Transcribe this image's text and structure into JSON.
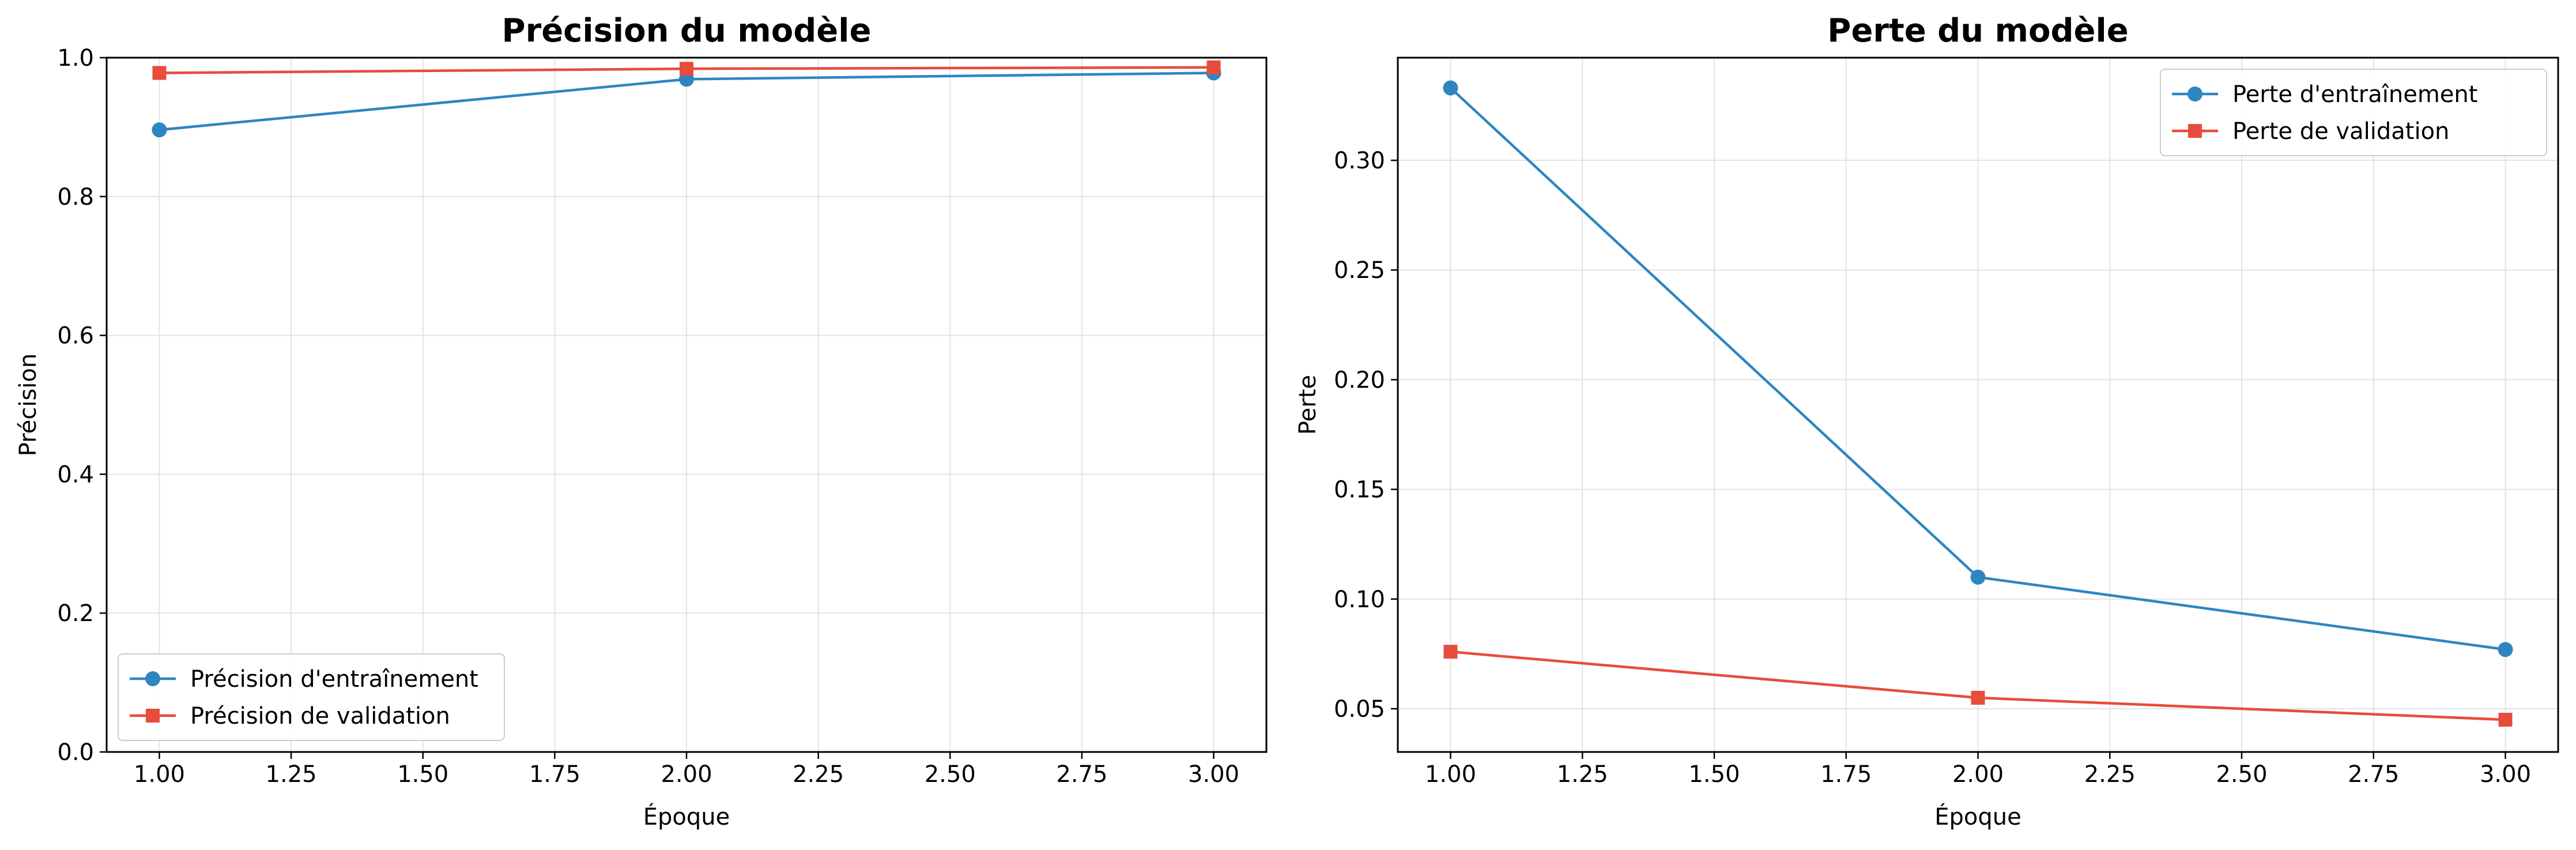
{
  "chart_data": [
    {
      "type": "line",
      "title": "Précision du modèle",
      "xlabel": "Époque",
      "ylabel": "Précision",
      "xlim": [
        0.9,
        3.1
      ],
      "ylim": [
        0.0,
        1.0
      ],
      "xticks": [
        "1.00",
        "1.25",
        "1.50",
        "1.75",
        "2.00",
        "2.25",
        "2.50",
        "2.75",
        "3.00"
      ],
      "yticks": [
        "0.0",
        "0.2",
        "0.4",
        "0.6",
        "0.8",
        "1.0"
      ],
      "grid": true,
      "legend_position": "lower-left",
      "x": [
        1,
        2,
        3
      ],
      "series": [
        {
          "name": "Précision d'entraînement",
          "values": [
            0.896,
            0.969,
            0.978
          ],
          "color": "#2e86c1",
          "marker": "circle"
        },
        {
          "name": "Précision de validation",
          "values": [
            0.978,
            0.984,
            0.986
          ],
          "color": "#e74c3c",
          "marker": "square"
        }
      ]
    },
    {
      "type": "line",
      "title": "Perte du modèle",
      "xlabel": "Époque",
      "ylabel": "Perte",
      "xlim": [
        0.9,
        3.1
      ],
      "ylim": [
        0.0303,
        0.3468
      ],
      "xticks": [
        "1.00",
        "1.25",
        "1.50",
        "1.75",
        "2.00",
        "2.25",
        "2.50",
        "2.75",
        "3.00"
      ],
      "yticks": [
        "0.05",
        "0.10",
        "0.15",
        "0.20",
        "0.25",
        "0.30"
      ],
      "grid": true,
      "legend_position": "upper-right",
      "x": [
        1,
        2,
        3
      ],
      "series": [
        {
          "name": "Perte d'entraînement",
          "values": [
            0.333,
            0.11,
            0.077
          ],
          "color": "#2e86c1",
          "marker": "circle"
        },
        {
          "name": "Perte de validation",
          "values": [
            0.076,
            0.055,
            0.045
          ],
          "color": "#e74c3c",
          "marker": "square"
        }
      ]
    }
  ]
}
